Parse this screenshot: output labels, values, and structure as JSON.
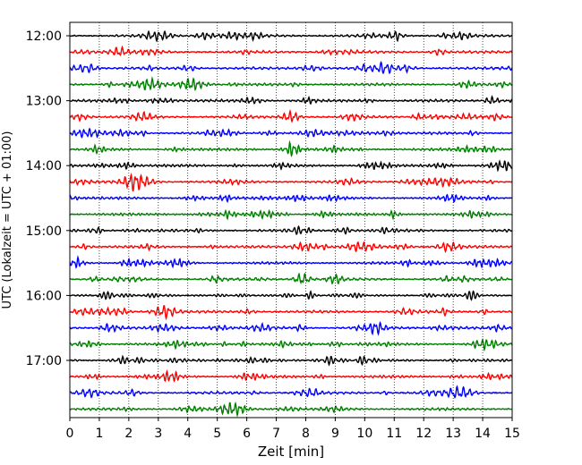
{
  "chart_data": {
    "type": "line",
    "title": "",
    "xlabel": "Zeit  [min]",
    "ylabel": "UTC (Lokalzeit = UTC + 01:00)",
    "xlim": [
      0,
      15
    ],
    "x_ticks": [
      0,
      1,
      2,
      3,
      4,
      5,
      6,
      7,
      8,
      9,
      10,
      11,
      12,
      13,
      14,
      15
    ],
    "x_tick_labels": [
      "0",
      "1",
      "2",
      "3",
      "4",
      "5",
      "6",
      "7",
      "8",
      "9",
      "10",
      "11",
      "12",
      "13",
      "14",
      "15"
    ],
    "y_tick_labels": [
      "12:00",
      "13:00",
      "14:00",
      "15:00",
      "16:00",
      "17:00"
    ],
    "trace_start_times": [
      "12:00",
      "12:15",
      "12:30",
      "12:45",
      "13:00",
      "13:15",
      "13:30",
      "13:45",
      "14:00",
      "14:15",
      "14:30",
      "14:45",
      "15:00",
      "15:15",
      "15:30",
      "15:45",
      "16:00",
      "16:15",
      "16:30",
      "16:45",
      "17:00",
      "17:15",
      "17:30",
      "17:45"
    ],
    "trace_colors": [
      "#000000",
      "#ff0000",
      "#0000ff",
      "#007f00"
    ],
    "minutes_per_trace": 15,
    "grid": "vertical dotted at each minute",
    "legend": "none"
  }
}
